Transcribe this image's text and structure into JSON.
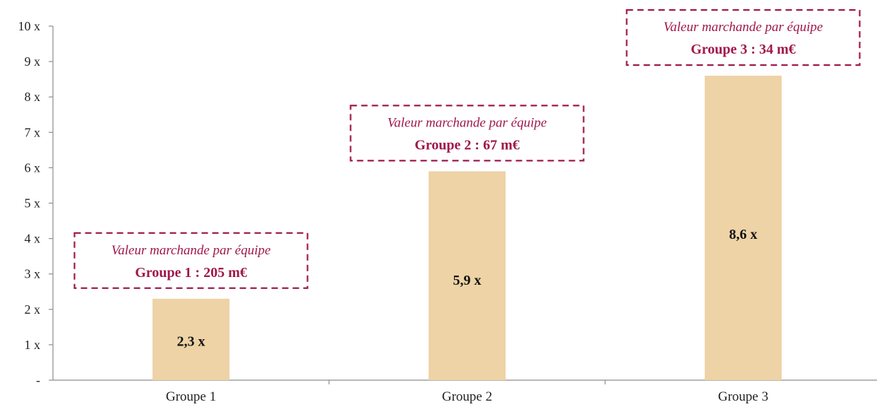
{
  "chart_data": {
    "type": "bar",
    "title": "",
    "xlabel": "",
    "ylabel": "",
    "categories": [
      "Groupe 1",
      "Groupe 2",
      "Groupe 3"
    ],
    "values": [
      2.3,
      5.9,
      8.6
    ],
    "value_labels": [
      "2,3 x",
      "5,9 x",
      "8,6 x"
    ],
    "ylim": [
      0,
      10
    ],
    "y_ticks": [
      {
        "value": 0,
        "label": "-"
      },
      {
        "value": 1,
        "label": "1 x"
      },
      {
        "value": 2,
        "label": "2 x"
      },
      {
        "value": 3,
        "label": "3 x"
      },
      {
        "value": 4,
        "label": "4 x"
      },
      {
        "value": 5,
        "label": "5 x"
      },
      {
        "value": 6,
        "label": "6 x"
      },
      {
        "value": 7,
        "label": "7 x"
      },
      {
        "value": 8,
        "label": "8 x"
      },
      {
        "value": 9,
        "label": "9 x"
      },
      {
        "value": 10,
        "label": "10 x"
      }
    ],
    "grid": false,
    "legend": "none",
    "annotations": [
      {
        "category": "Groupe 1",
        "italic_text": "Valeur marchande par équipe",
        "bold_text": "Groupe 1 : 205 m€"
      },
      {
        "category": "Groupe 2",
        "italic_text": "Valeur marchande par équipe",
        "bold_text": "Groupe 2 : 67 m€"
      },
      {
        "category": "Groupe 3",
        "italic_text": "Valeur marchande par équipe",
        "bold_text": "Groupe 3 : 34 m€"
      }
    ],
    "colors": {
      "bar": "#EDD3A6",
      "annotation": "#A0174A",
      "axis": "#8c8c8c"
    }
  }
}
